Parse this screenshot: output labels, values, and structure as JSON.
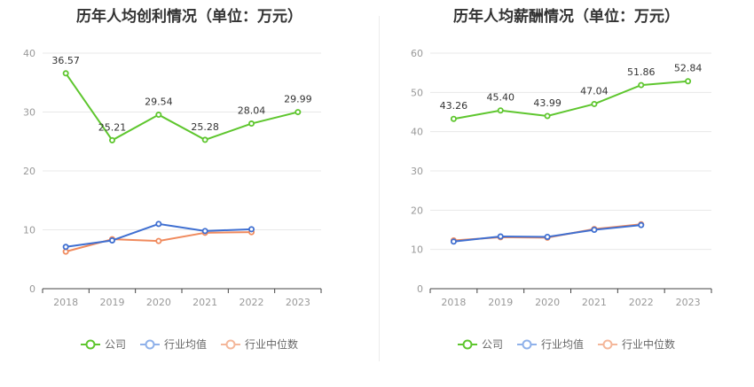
{
  "chart_data": [
    {
      "type": "line",
      "title": "历年人均创利情况（单位：万元）",
      "categories": [
        "2018",
        "2019",
        "2020",
        "2021",
        "2022",
        "2023"
      ],
      "ylim": [
        0,
        40
      ],
      "yticks": [
        0,
        10,
        20,
        30,
        40
      ],
      "grid": true,
      "legend_position": "bottom",
      "series": [
        {
          "name": "公司",
          "color": "#5ec62e",
          "values": [
            36.57,
            25.21,
            29.54,
            25.28,
            28.04,
            29.99
          ],
          "labels": [
            "36.57",
            "25.21",
            "29.54",
            "25.28",
            "28.04",
            "29.99"
          ]
        },
        {
          "name": "行业均值",
          "color": "#3f6fd1",
          "values": [
            7.1,
            8.2,
            11.0,
            9.8,
            10.1,
            null
          ]
        },
        {
          "name": "行业中位数",
          "color": "#f08a5d",
          "values": [
            6.3,
            8.4,
            8.1,
            9.5,
            9.6,
            null
          ]
        }
      ]
    },
    {
      "type": "line",
      "title": "历年人均薪酬情况（单位：万元）",
      "categories": [
        "2018",
        "2019",
        "2020",
        "2021",
        "2022",
        "2023"
      ],
      "ylim": [
        0,
        60
      ],
      "yticks": [
        0,
        10,
        20,
        30,
        40,
        50,
        60
      ],
      "grid": true,
      "legend_position": "bottom",
      "series": [
        {
          "name": "公司",
          "color": "#5ec62e",
          "values": [
            43.26,
            45.4,
            43.99,
            47.04,
            51.86,
            52.84
          ],
          "labels": [
            "43.26",
            "45.40",
            "43.99",
            "47.04",
            "51.86",
            "52.84"
          ]
        },
        {
          "name": "行业均值",
          "color": "#3f6fd1",
          "values": [
            12.0,
            13.3,
            13.2,
            15.0,
            16.2,
            null
          ]
        },
        {
          "name": "行业中位数",
          "color": "#f08a5d",
          "values": [
            12.3,
            13.1,
            13.0,
            15.2,
            16.4,
            null
          ]
        }
      ]
    }
  ],
  "legend_swatch_colors": [
    "#5ec62e",
    "#8fb1ea",
    "#f4b79a"
  ]
}
